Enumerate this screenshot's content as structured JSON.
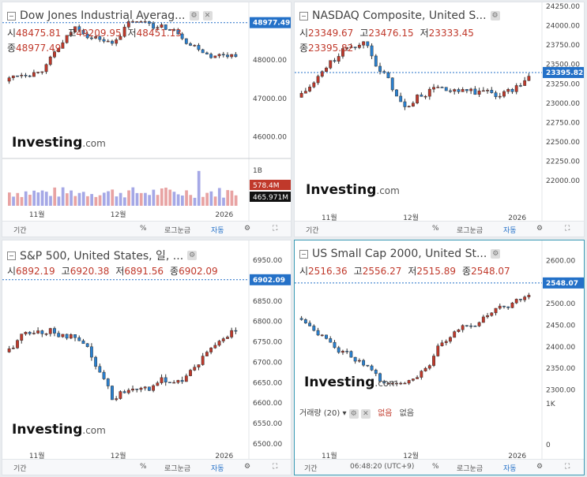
{
  "footer": {
    "period": "기간",
    "percent": "%",
    "log": "로그눈금",
    "auto": "자동",
    "time": "06:48:20 (UTC+9)"
  },
  "branding": {
    "name": "Investing",
    "suffix": ".com"
  },
  "colors": {
    "up": "#c0392b",
    "down": "#2980d0",
    "vol_up": "#e8a3a3",
    "vol_down": "#a5a8e6",
    "price_line": "#2471c8",
    "last_bg": "#2471c8"
  },
  "ohlc_labels": {
    "open": "시",
    "high": "고",
    "low": "저",
    "close": "종"
  },
  "charts": [
    {
      "id": "dji",
      "title": "Dow Jones Industrial Averag...",
      "open": "48475.81",
      "high": "49209.95",
      "low": "48451.13",
      "close": "48977.49",
      "last_label": "48977.49",
      "y_ticks": [
        "48000.00",
        "47000.00",
        "46000.00"
      ],
      "y_tick_values": [
        48000,
        47000,
        46000
      ],
      "x_ticks": [
        "11월",
        "12월",
        "2026"
      ],
      "volume": {
        "ticks": [
          "1B"
        ],
        "labels": [
          "578.4M",
          "465.971M"
        ]
      }
    },
    {
      "id": "nasdaq",
      "title": "NASDAQ Composite, United S...",
      "open": "23349.67",
      "high": "23476.15",
      "low": "23333.45",
      "close": "23395.82",
      "last_label": "23395.82",
      "y_ticks": [
        "24250.00",
        "24000.00",
        "23750.00",
        "23500.00",
        "23250.00",
        "23000.00",
        "22750.00",
        "22500.00",
        "22250.00",
        "22000.00"
      ],
      "y_tick_values": [
        24250,
        24000,
        23750,
        23500,
        23250,
        23000,
        22750,
        22500,
        22250,
        22000
      ],
      "x_ticks": [
        "11월",
        "12월",
        "2026"
      ]
    },
    {
      "id": "spx",
      "title": "S&P 500, United States, 일, ...",
      "open": "6892.19",
      "high": "6920.38",
      "low": "6891.56",
      "close": "6902.09",
      "last_label": "6902.09",
      "y_ticks": [
        "6950.00",
        "6900.00",
        "6850.00",
        "6800.00",
        "6750.00",
        "6700.00",
        "6650.00",
        "6600.00",
        "6550.00",
        "6500.00"
      ],
      "y_tick_values": [
        6950,
        6900,
        6850,
        6800,
        6750,
        6700,
        6650,
        6600,
        6550,
        6500
      ],
      "x_ticks": [
        "11월",
        "12월",
        "2026"
      ]
    },
    {
      "id": "rut",
      "title": "US Small Cap 2000, United St...",
      "open": "2516.36",
      "high": "2556.27",
      "low": "2515.89",
      "close": "2548.07",
      "last_label": "2548.07",
      "y_ticks": [
        "2600.00",
        "2550.00",
        "2500.00",
        "2450.00",
        "2400.00",
        "2350.00",
        "2300.00"
      ],
      "y_tick_values": [
        2600,
        2550,
        2500,
        2450,
        2400,
        2350,
        2300
      ],
      "x_ticks": [
        "11월",
        "12월",
        "2026"
      ],
      "volume_legend": {
        "label": "거래량 (20)",
        "value1": "없음",
        "value2": "없음",
        "tick": "1K",
        "tick_zero": "0"
      }
    }
  ],
  "chart_data": [
    {
      "type": "candlestick",
      "title": "Dow Jones Industrial Averag...",
      "last": 48977.49,
      "ylim": [
        45600,
        49300
      ],
      "x_ticks": [
        "11월",
        "12월",
        "2026"
      ],
      "y_ticks": [
        48000,
        47000,
        46000
      ]
    },
    {
      "type": "candlestick",
      "title": "NASDAQ Composite, United S...",
      "last": 23395.82,
      "ylim": [
        21900,
        24250
      ],
      "x_ticks": [
        "11월",
        "12월",
        "2026"
      ],
      "y_ticks": [
        24250,
        24000,
        23750,
        23500,
        23250,
        23000,
        22750,
        22500,
        22250,
        22000
      ]
    },
    {
      "type": "candlestick",
      "title": "S&P 500, United States, 일, ...",
      "last": 6902.09,
      "ylim": [
        6500,
        6950
      ],
      "x_ticks": [
        "11월",
        "12월",
        "2026"
      ],
      "y_ticks": [
        6950,
        6900,
        6850,
        6800,
        6750,
        6700,
        6650,
        6600,
        6550,
        6500
      ]
    },
    {
      "type": "candlestick",
      "title": "US Small Cap 2000, United St...",
      "last": 2548.07,
      "ylim": [
        2290,
        2610
      ],
      "x_ticks": [
        "11월",
        "12월",
        "2026"
      ],
      "y_ticks": [
        2600,
        2550,
        2500,
        2450,
        2400,
        2350,
        2300
      ]
    }
  ]
}
